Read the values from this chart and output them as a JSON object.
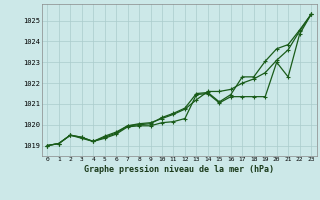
{
  "title": "Graphe pression niveau de la mer (hPa)",
  "bg_color": "#cce8e8",
  "grid_color": "#aacccc",
  "line_color": "#1a5c1a",
  "x_ticks": [
    0,
    1,
    2,
    3,
    4,
    5,
    6,
    7,
    8,
    9,
    10,
    11,
    12,
    13,
    14,
    15,
    16,
    17,
    18,
    19,
    20,
    21,
    22,
    23
  ],
  "ylim": [
    1018.5,
    1025.8
  ],
  "y_ticks": [
    1019,
    1020,
    1021,
    1022,
    1023,
    1024,
    1025
  ],
  "line_smooth": [
    1019.0,
    1019.1,
    1019.5,
    1019.4,
    1019.2,
    1019.45,
    1019.65,
    1019.95,
    1020.05,
    1020.1,
    1020.3,
    1020.5,
    1020.75,
    1021.2,
    1021.6,
    1021.6,
    1021.7,
    1022.0,
    1022.2,
    1022.5,
    1023.1,
    1023.6,
    1024.5,
    1025.3
  ],
  "line_jagged": [
    1019.0,
    1019.1,
    1019.5,
    1019.35,
    1019.2,
    1019.35,
    1019.55,
    1019.9,
    1019.95,
    1019.95,
    1020.1,
    1020.15,
    1020.3,
    1021.45,
    1021.5,
    1021.05,
    1021.35,
    1021.35,
    1021.35,
    1021.35,
    1023.0,
    1022.3,
    1024.35,
    1025.3
  ],
  "line_upper": [
    1019.0,
    1019.1,
    1019.5,
    1019.4,
    1019.2,
    1019.4,
    1019.6,
    1019.95,
    1020.0,
    1020.05,
    1020.35,
    1020.55,
    1020.8,
    1021.5,
    1021.55,
    1021.1,
    1021.45,
    1022.3,
    1022.3,
    1023.05,
    1023.65,
    1023.85,
    1024.55,
    1025.3
  ]
}
